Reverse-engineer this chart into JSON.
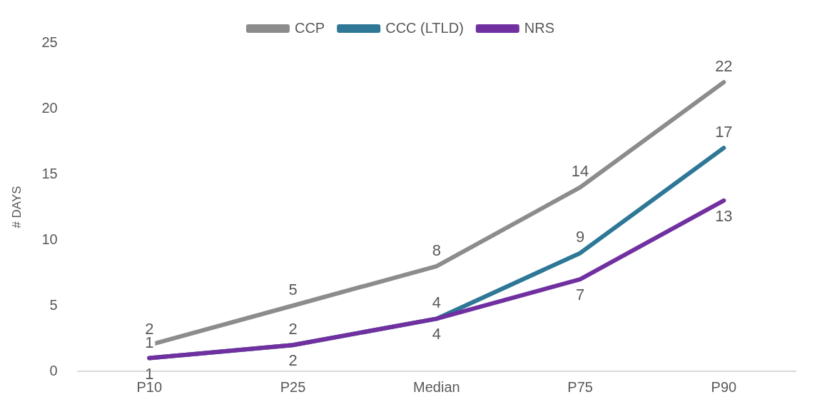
{
  "chart_data": {
    "type": "line",
    "ylabel": "# DAYS",
    "categories": [
      "P10",
      "P25",
      "Median",
      "P75",
      "P90"
    ],
    "series": [
      {
        "name": "CCP",
        "color": "#8c8c8c",
        "values": [
          2,
          5,
          8,
          14,
          22
        ]
      },
      {
        "name": "CCC (LTLD)",
        "color": "#2e7797",
        "values": [
          1,
          2,
          4,
          9,
          17
        ]
      },
      {
        "name": "NRS",
        "color": "#7030a0",
        "values": [
          1,
          2,
          4,
          7,
          13
        ]
      }
    ],
    "ylim": [
      0,
      25
    ],
    "yticks": [
      0,
      5,
      10,
      15,
      20,
      25
    ],
    "grid": false,
    "legend": "top",
    "marker": "none",
    "line_style": "solid",
    "data_labels": true
  }
}
